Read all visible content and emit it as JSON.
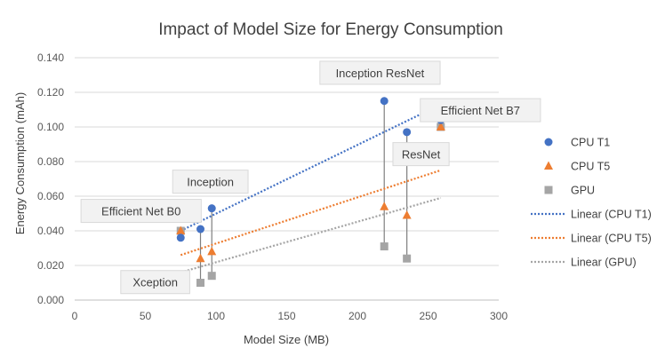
{
  "chart_data": {
    "type": "scatter",
    "title": "Impact of Model Size for Energy Consumption",
    "xlabel": "Model Size (MB)",
    "ylabel": "Energy Consumption (mAh)",
    "xlim": [
      0,
      300
    ],
    "ylim": [
      0,
      0.14
    ],
    "x_ticks": [
      0,
      50,
      100,
      150,
      200,
      250,
      300
    ],
    "y_ticks": [
      0.0,
      0.02,
      0.04,
      0.06,
      0.08,
      0.1,
      0.12,
      0.14
    ],
    "x_tick_labels": [
      "0",
      "50",
      "100",
      "150",
      "200",
      "250",
      "300"
    ],
    "y_tick_labels": [
      "0.000",
      "0.020",
      "0.040",
      "0.060",
      "0.080",
      "0.100",
      "0.120",
      "0.140"
    ],
    "grid": "horizontal",
    "legend_position": "right",
    "models": [
      "Efficient Net B0",
      "Xception",
      "Inception",
      "Inception ResNet",
      "ResNet",
      "Efficient Net B7"
    ],
    "model_sizes": [
      75,
      89,
      97,
      219,
      235,
      259
    ],
    "series": [
      {
        "name": "CPU T1",
        "marker": "circle",
        "color": "#4472C4",
        "x": [
          75,
          89,
          97,
          219,
          235,
          259
        ],
        "y": [
          0.036,
          0.041,
          0.053,
          0.115,
          0.097,
          0.104
        ]
      },
      {
        "name": "CPU T5",
        "marker": "triangle",
        "color": "#ED7D31",
        "x": [
          75,
          89,
          97,
          219,
          235,
          259
        ],
        "y": [
          0.04,
          0.024,
          0.028,
          0.054,
          0.049,
          0.1
        ]
      },
      {
        "name": "GPU",
        "marker": "square",
        "color": "#A5A5A5",
        "x": [
          75,
          89,
          97,
          219,
          235,
          259
        ],
        "y": [
          0.04,
          0.01,
          0.014,
          0.031,
          0.024,
          0.1
        ]
      }
    ],
    "trendlines": [
      {
        "name": "Linear (CPU T1)",
        "color": "#4472C4",
        "x": [
          75,
          259
        ],
        "y": [
          0.04,
          0.113
        ]
      },
      {
        "name": "Linear (CPU T5)",
        "color": "#ED7D31",
        "x": [
          75,
          259
        ],
        "y": [
          0.026,
          0.075
        ]
      },
      {
        "name": "Linear (GPU)",
        "color": "#A5A5A5",
        "x": [
          75,
          259
        ],
        "y": [
          0.016,
          0.059
        ]
      }
    ],
    "annotations": [
      {
        "text": "Efficient Net B0",
        "anchor_x": 47,
        "anchor_y": 0.0515
      },
      {
        "text": "Xception",
        "anchor_x": 57,
        "anchor_y": 0.0104
      },
      {
        "text": "Inception",
        "anchor_x": 96,
        "anchor_y": 0.0684
      },
      {
        "text": "Inception ResNet",
        "anchor_x": 216,
        "anchor_y": 0.1313
      },
      {
        "text": "ResNet",
        "anchor_x": 245,
        "anchor_y": 0.0843
      },
      {
        "text": "Efficient Net B7",
        "anchor_x": 287,
        "anchor_y": 0.1097
      }
    ]
  }
}
